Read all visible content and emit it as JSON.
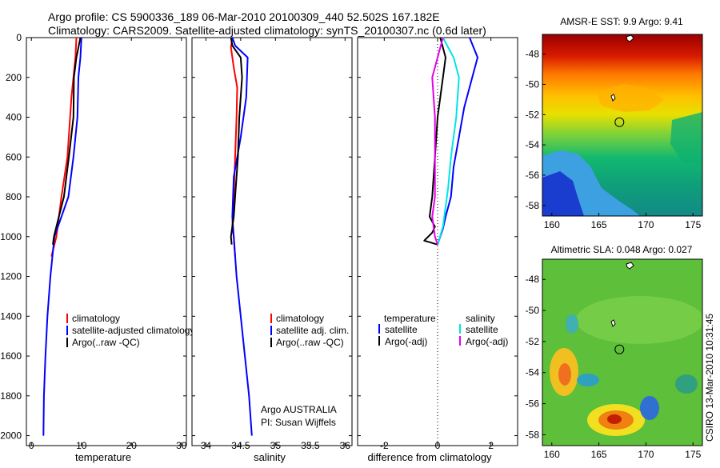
{
  "header": {
    "line1": "Argo profile: CS 5900336_189 06-Mar-2010 20100309_440 52.502S 167.182E",
    "line2": "Climatology: CARS2009. Satellite-adjusted climatology: synTS_20100307.nc (0.6d later)"
  },
  "colors": {
    "climatology": "#ff0000",
    "satellite": "#0000ff",
    "argo": "#000000",
    "satellite_salinity": "#00e5e5",
    "argo_salinity": "#e600e6"
  },
  "chart_data": [
    {
      "type": "line",
      "panel": "temperature",
      "xlabel": "temperature",
      "xlim": [
        -1,
        31
      ],
      "xticks": [
        0,
        10,
        20,
        30
      ],
      "ylim": [
        2050,
        0
      ],
      "yticks": [
        0,
        200,
        400,
        600,
        800,
        1000,
        1200,
        1400,
        1600,
        1800,
        2000
      ],
      "legend": [
        "climatology",
        "satellite-adjusted climatology",
        "Argo(..raw -QC)"
      ],
      "legend_colors": [
        "#ff0000",
        "#0000ff",
        "#000000"
      ],
      "series": [
        {
          "name": "climatology",
          "color": "#ff0000",
          "x": [
            9.0,
            8.8,
            8.0,
            7.2,
            6.0,
            5.0,
            4.0
          ],
          "y": [
            0,
            100,
            300,
            600,
            800,
            1000,
            1100
          ]
        },
        {
          "name": "satellite-adjusted climatology",
          "color": "#0000ff",
          "x": [
            10.0,
            9.8,
            9.4,
            9.2,
            8.4,
            7.4,
            6.0,
            4.6,
            3.8,
            3.2,
            2.8,
            2.5,
            2.4
          ],
          "y": [
            0,
            100,
            200,
            400,
            600,
            800,
            900,
            1000,
            1200,
            1400,
            1600,
            1800,
            2000
          ]
        },
        {
          "name": "Argo(..raw -QC)",
          "color": "#000000",
          "x": [
            9.8,
            9.0,
            8.5,
            8.4,
            7.5,
            6.5,
            5.5,
            4.5,
            4.3
          ],
          "y": [
            0,
            100,
            200,
            400,
            600,
            800,
            900,
            1000,
            1040
          ]
        }
      ]
    },
    {
      "type": "line",
      "panel": "salinity",
      "xlabel": "salinity",
      "xlim": [
        33.8,
        36.1
      ],
      "xticks": [
        34,
        34.5,
        35,
        35.5,
        36
      ],
      "ylim": [
        2050,
        0
      ],
      "legend": [
        "climatology",
        "satellite adj. clim.",
        "Argo(..raw -QC)"
      ],
      "legend_colors": [
        "#ff0000",
        "#0000ff",
        "#000000"
      ],
      "annotation": [
        "Argo AUSTRALIA",
        "PI: Susan Wijffels"
      ],
      "series": [
        {
          "name": "climatology",
          "color": "#ff0000",
          "x": [
            34.38,
            34.36,
            34.4,
            34.45,
            34.44,
            34.42,
            34.4,
            34.38,
            34.4,
            34.42
          ],
          "y": [
            0,
            50,
            150,
            250,
            400,
            600,
            800,
            950,
            1000,
            1100
          ]
        },
        {
          "name": "satellite adj. clim.",
          "color": "#0000ff",
          "x": [
            34.38,
            34.42,
            34.6,
            34.58,
            34.5,
            34.4,
            34.38,
            34.4,
            34.44,
            34.5,
            34.56,
            34.62,
            34.66
          ],
          "y": [
            0,
            40,
            100,
            300,
            500,
            700,
            900,
            1000,
            1200,
            1400,
            1600,
            1800,
            2000
          ]
        },
        {
          "name": "Argo(..raw -QC)",
          "color": "#000000",
          "x": [
            34.36,
            34.38,
            34.5,
            34.52,
            34.48,
            34.46,
            34.42,
            34.4,
            34.38,
            34.36,
            34.37
          ],
          "y": [
            0,
            40,
            100,
            200,
            400,
            600,
            800,
            900,
            950,
            1000,
            1040
          ]
        }
      ]
    },
    {
      "type": "line",
      "panel": "difference",
      "xlabel": "difference from climatology",
      "xlim": [
        -3,
        3
      ],
      "xticks": [
        -2,
        0,
        2
      ],
      "ylim": [
        2050,
        0
      ],
      "legend_temperature_title": "temperature",
      "legend_salinity_title": "salinity",
      "legend": [
        "satellite",
        "Argo(-adj)",
        "satellite",
        "Argo(-adj)"
      ],
      "legend_colors": [
        "#0000ff",
        "#000000",
        "#00e5e5",
        "#e600e6"
      ],
      "series": [
        {
          "name": "temperature satellite",
          "color": "#0000ff",
          "x": [
            1.2,
            1.5,
            1.3,
            1.0,
            0.8,
            0.6,
            0.5,
            0.3,
            0.2,
            0.1,
            0.0
          ],
          "y": [
            0,
            100,
            200,
            350,
            500,
            650,
            800,
            900,
            960,
            1000,
            1040
          ]
        },
        {
          "name": "salinity satellite",
          "color": "#00e5e5",
          "x": [
            0.2,
            0.6,
            0.8,
            0.7,
            0.5,
            0.4,
            0.3,
            0.2,
            0.0
          ],
          "y": [
            0,
            100,
            200,
            400,
            600,
            750,
            850,
            950,
            1040
          ]
        },
        {
          "name": "temperature Argo(-adj)",
          "color": "#000000",
          "x": [
            0.1,
            0.3,
            0.2,
            0.0,
            -0.1,
            -0.2,
            -0.3,
            -0.1,
            -0.2,
            -0.5,
            0.0
          ],
          "y": [
            0,
            100,
            200,
            400,
            600,
            800,
            900,
            950,
            980,
            1020,
            1040
          ]
        },
        {
          "name": "salinity Argo(-adj)",
          "color": "#e600e6",
          "x": [
            0.2,
            0.0,
            -0.2,
            -0.1,
            -0.1,
            -0.1,
            -0.2,
            -0.1,
            0.0
          ],
          "y": [
            0,
            100,
            200,
            400,
            600,
            800,
            900,
            1000,
            1040
          ]
        }
      ]
    },
    {
      "type": "heatmap",
      "panel": "sst_map",
      "title": "AMSR-E SST: 9.9  Argo: 9.41",
      "xlim": [
        159,
        176
      ],
      "xticks": [
        160,
        165,
        170,
        175
      ],
      "ylim": [
        -58.7,
        -46.7
      ],
      "yticks": [
        -48,
        -50,
        -52,
        -54,
        -56,
        -58
      ],
      "float_position": {
        "lon": 167.182,
        "lat": -52.502
      }
    },
    {
      "type": "heatmap",
      "panel": "sla_map",
      "title": "Altimetric SLA: 0.048  Argo: 0.027",
      "xlim": [
        159,
        176
      ],
      "xticks": [
        160,
        165,
        170,
        175
      ],
      "ylim": [
        -58.7,
        -46.7
      ],
      "yticks": [
        -48,
        -50,
        -52,
        -54,
        -56,
        -58
      ],
      "float_position": {
        "lon": 167.182,
        "lat": -52.502
      }
    }
  ],
  "footer": {
    "stamp": "CSIRO 13-Mar-2010 10:31:45"
  }
}
